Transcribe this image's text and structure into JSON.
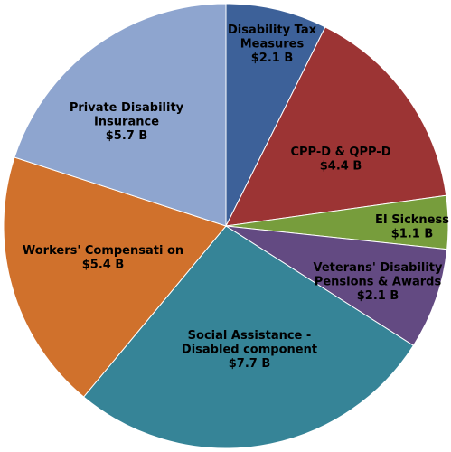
{
  "chart_data": {
    "type": "pie",
    "title": "",
    "unit": "$ B",
    "start_angle_deg": 0,
    "direction": "clockwise",
    "series": [
      {
        "name": "",
        "values": []
      }
    ],
    "slices": [
      {
        "label": [
          "Disability Tax",
          "Measures",
          "$2.1 B"
        ],
        "category": "Disability Tax Measures",
        "value": 2.1,
        "color": "#3d6199",
        "text_color": "#000000"
      },
      {
        "label": [
          "CPP-D & QPP-D",
          "$4.4 B"
        ],
        "category": "CPP-D & QPP-D",
        "value": 4.4,
        "color": "#9c3434",
        "text_color": "#000000"
      },
      {
        "label": [
          "EI Sickness",
          "$1.1 B"
        ],
        "category": "EI Sickness",
        "value": 1.1,
        "color": "#779d3c",
        "text_color": "#000000"
      },
      {
        "label": [
          "Veterans' Disability",
          "Pensions & Awards",
          "$2.1 B"
        ],
        "category": "Veterans' Disability Pensions & Awards",
        "value": 2.1,
        "color": "#634a82",
        "text_color": "#000000"
      },
      {
        "label": [
          "Social Assistance -",
          "Disabled component",
          "$7.7 B"
        ],
        "category": "Social Assistance - Disabled component",
        "value": 7.7,
        "color": "#368497",
        "text_color": "#000000"
      },
      {
        "label": [
          "Workers' Compensati   on",
          "$5.4 B"
        ],
        "category": "Workers' Compensation",
        "value": 5.4,
        "color": "#d0712c",
        "text_color": "#000000"
      },
      {
        "label": [
          "Private Disability",
          "Insurance",
          "$5.7 B"
        ],
        "category": "Private Disability Insurance",
        "value": 5.7,
        "color": "#8ea5cf",
        "text_color": "#000000"
      }
    ]
  }
}
